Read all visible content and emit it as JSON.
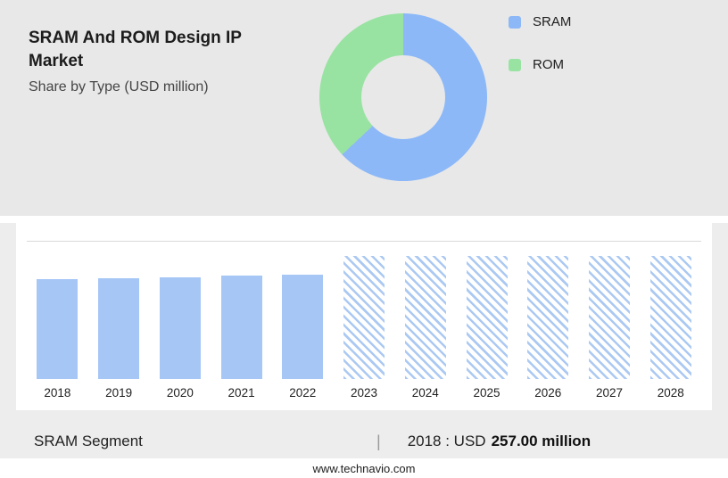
{
  "header": {
    "title": "SRAM And ROM Design IP Market",
    "subtitle": "Share by Type (USD million)"
  },
  "legend": {
    "items": [
      {
        "label": "SRAM",
        "color": "#8cb8f8"
      },
      {
        "label": "ROM",
        "color": "#98e3a2"
      }
    ]
  },
  "chart_data": [
    {
      "type": "pie",
      "donut": true,
      "title": "SRAM And ROM Design IP Market - Share by Type (USD million)",
      "labels": [
        "SRAM",
        "ROM"
      ],
      "values": [
        63,
        37
      ],
      "colors": [
        "#8cb8f8",
        "#98e3a2"
      ],
      "legend_position": "right"
    },
    {
      "type": "bar",
      "categories": [
        "2018",
        "2019",
        "2020",
        "2021",
        "2022",
        "2023",
        "2024",
        "2025",
        "2026",
        "2027",
        "2028"
      ],
      "values": [
        257,
        259,
        261,
        264,
        268,
        315,
        315,
        315,
        315,
        315,
        315
      ],
      "actual_years": [
        "2018",
        "2019",
        "2020",
        "2021",
        "2022"
      ],
      "forecast_masked_years": [
        "2023",
        "2024",
        "2025",
        "2026",
        "2027",
        "2028"
      ],
      "bar_color": "#a6c7f6",
      "xlabel": "",
      "ylabel": "",
      "ylim": [
        0,
        320
      ],
      "grid": "top-line-only"
    }
  ],
  "footer": {
    "segment_label": "SRAM Segment",
    "separator": "|",
    "value_prefix": "2018 : USD",
    "value_bold": "257.00 million"
  },
  "sitebar": {
    "url": "www.technavio.com"
  }
}
